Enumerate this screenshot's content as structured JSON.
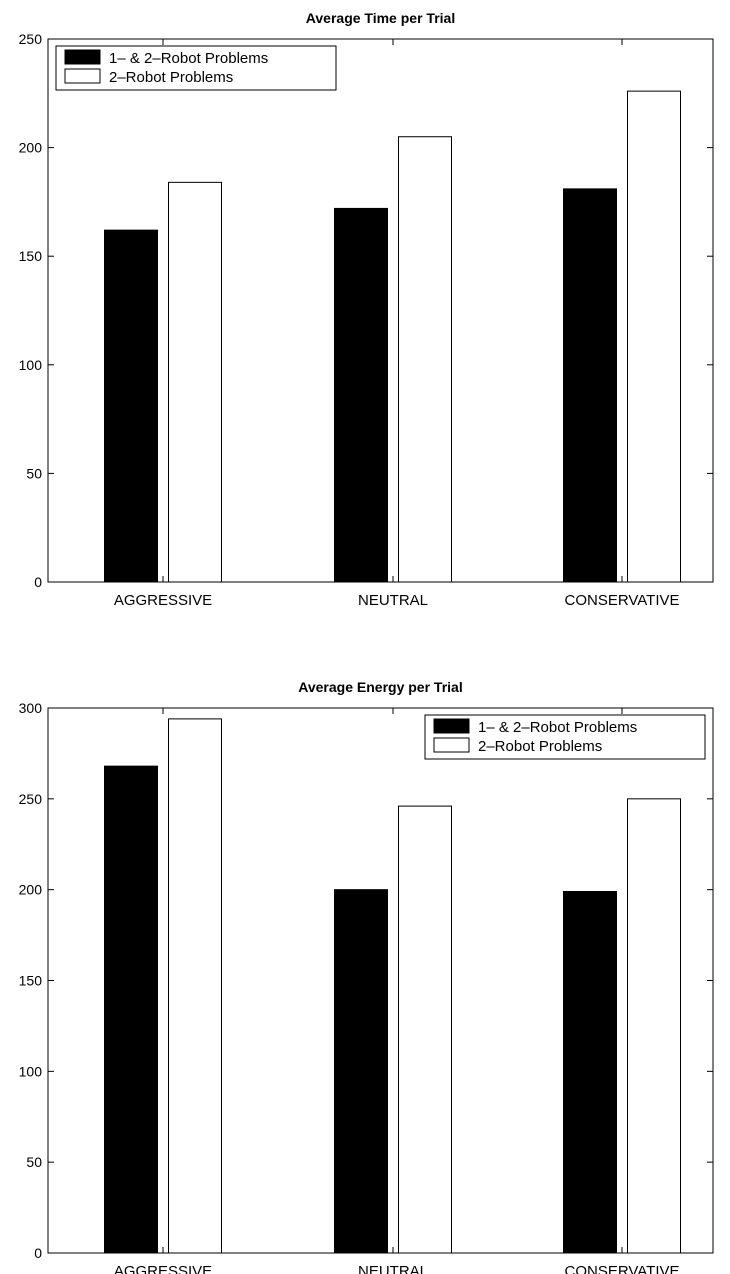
{
  "chart_data": [
    {
      "type": "bar",
      "title": "Average Time per Trial",
      "xlabel": "",
      "ylabel": "",
      "categories": [
        "AGGRESSIVE",
        "NEUTRAL",
        "CONSERVATIVE"
      ],
      "series": [
        {
          "name": "1– & 2–Robot Problems",
          "color": "#000000",
          "values": [
            162,
            172,
            181
          ]
        },
        {
          "name": "2–Robot Problems",
          "color": "#ffffff",
          "values": [
            184,
            205,
            226
          ]
        }
      ],
      "ylim": [
        0,
        250
      ],
      "yticks": [
        0,
        50,
        100,
        150,
        200,
        250
      ],
      "grid": false,
      "legend_position": "top-left"
    },
    {
      "type": "bar",
      "title": "Average Energy per Trial",
      "xlabel": "",
      "ylabel": "",
      "categories": [
        "AGGRESSIVE",
        "NEUTRAL",
        "CONSERVATIVE"
      ],
      "series": [
        {
          "name": "1– & 2–Robot Problems",
          "color": "#000000",
          "values": [
            268,
            200,
            199
          ]
        },
        {
          "name": "2–Robot Problems",
          "color": "#ffffff",
          "values": [
            294,
            246,
            250
          ]
        }
      ],
      "ylim": [
        0,
        300
      ],
      "yticks": [
        0,
        50,
        100,
        150,
        200,
        250,
        300
      ],
      "grid": false,
      "legend_position": "top-right"
    }
  ]
}
